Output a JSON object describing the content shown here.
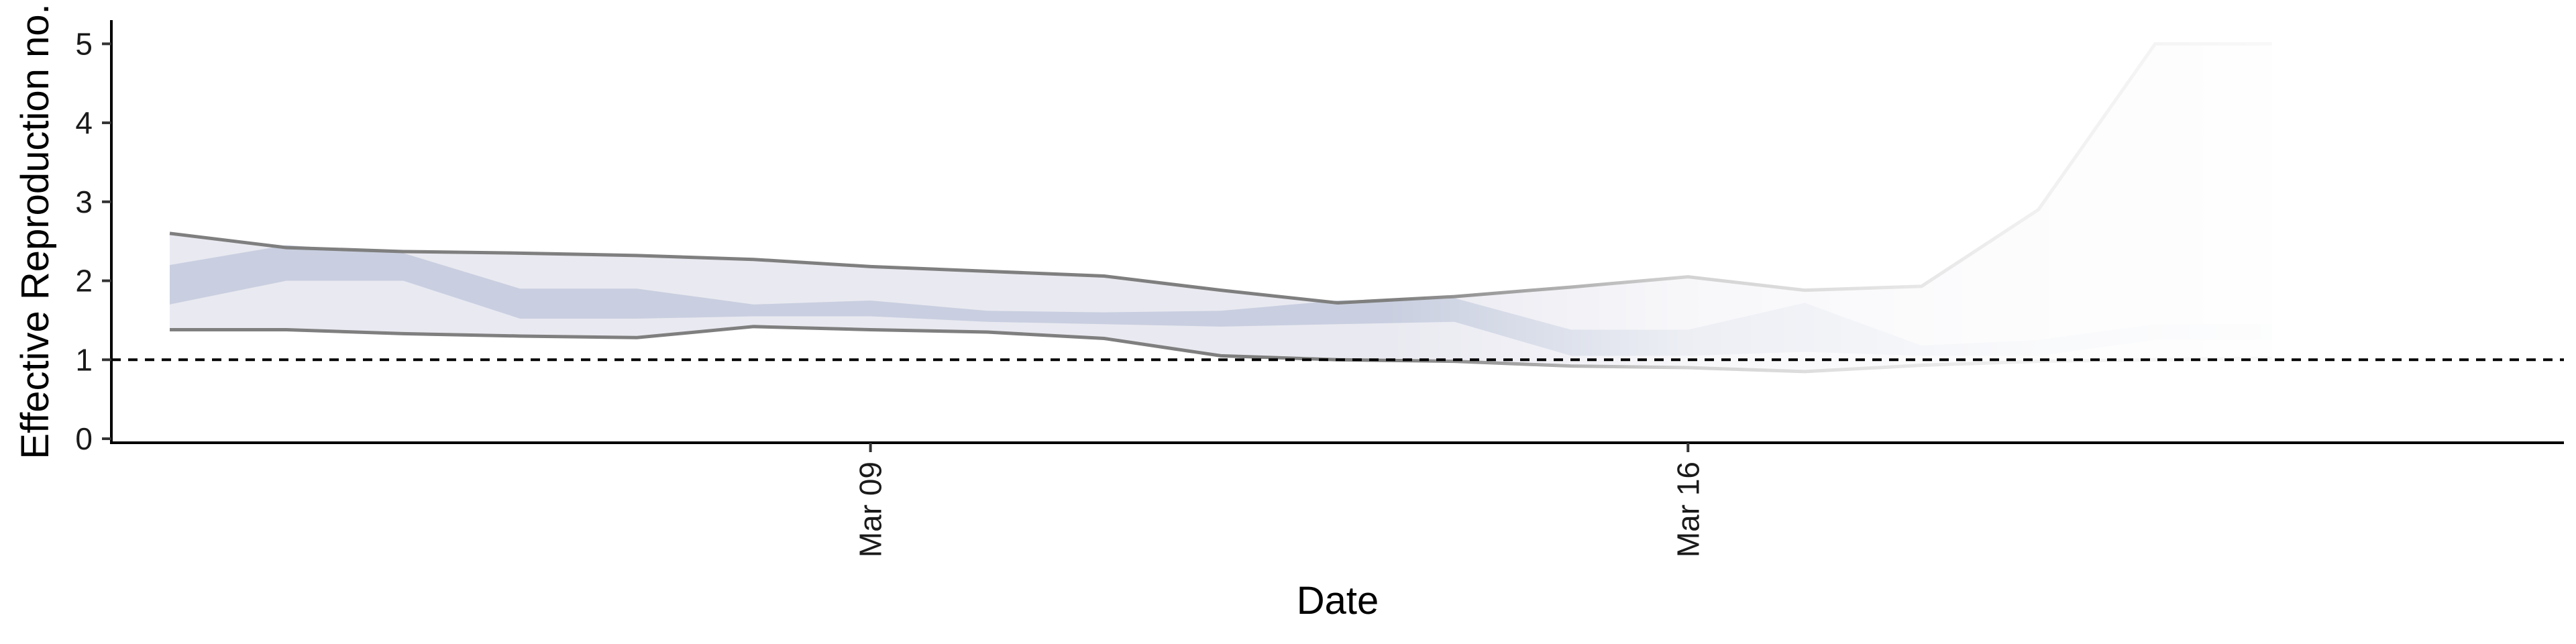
{
  "chart_data": {
    "type": "line",
    "xlabel": "Date",
    "ylabel": "Effective Reproduction no.",
    "ylim": [
      0,
      5.3
    ],
    "xlim": [
      "2020-03-02T12:00",
      "2020-03-23T12:00"
    ],
    "y_ticks": [
      0,
      1,
      2,
      3,
      4,
      5
    ],
    "x_ticks": [
      {
        "date": "2020-03-09",
        "label": "Mar 09"
      },
      {
        "date": "2020-03-16",
        "label": "Mar 16"
      }
    ],
    "reference_line": {
      "y": 1,
      "style": "dashed"
    },
    "grid": false,
    "legend": "none",
    "dates": [
      "2020-03-03",
      "2020-03-04",
      "2020-03-05",
      "2020-03-06",
      "2020-03-07",
      "2020-03-08",
      "2020-03-09",
      "2020-03-10",
      "2020-03-11",
      "2020-03-12",
      "2020-03-13",
      "2020-03-14",
      "2020-03-15",
      "2020-03-16",
      "2020-03-17",
      "2020-03-18",
      "2020-03-19",
      "2020-03-20",
      "2020-03-21"
    ],
    "outer_upper": [
      2.6,
      2.42,
      2.37,
      2.35,
      2.32,
      2.27,
      2.18,
      2.12,
      2.06,
      1.88,
      1.72,
      1.8,
      1.92,
      2.05,
      1.88,
      1.93,
      2.9,
      5.0,
      5.0
    ],
    "outer_lower": [
      1.38,
      1.38,
      1.33,
      1.3,
      1.28,
      1.42,
      1.38,
      1.35,
      1.27,
      1.05,
      1.0,
      0.98,
      0.92,
      0.9,
      0.85,
      0.93,
      0.98,
      1.0,
      1.02
    ],
    "inner_upper": [
      2.2,
      2.45,
      2.35,
      1.9,
      1.9,
      1.7,
      1.75,
      1.62,
      1.6,
      1.62,
      1.75,
      1.78,
      1.38,
      1.38,
      1.72,
      1.18,
      1.25,
      1.45,
      1.45
    ],
    "inner_lower": [
      1.7,
      2.0,
      2.0,
      1.52,
      1.52,
      1.55,
      1.55,
      1.48,
      1.45,
      1.42,
      1.45,
      1.48,
      1.05,
      1.05,
      1.1,
      1.05,
      1.05,
      1.25,
      1.25
    ],
    "colors": {
      "outer_band": "#e9e9f1",
      "inner_band": "#c9cfe0",
      "bound_line": "#7f7f7f",
      "axis": "#000000"
    }
  }
}
